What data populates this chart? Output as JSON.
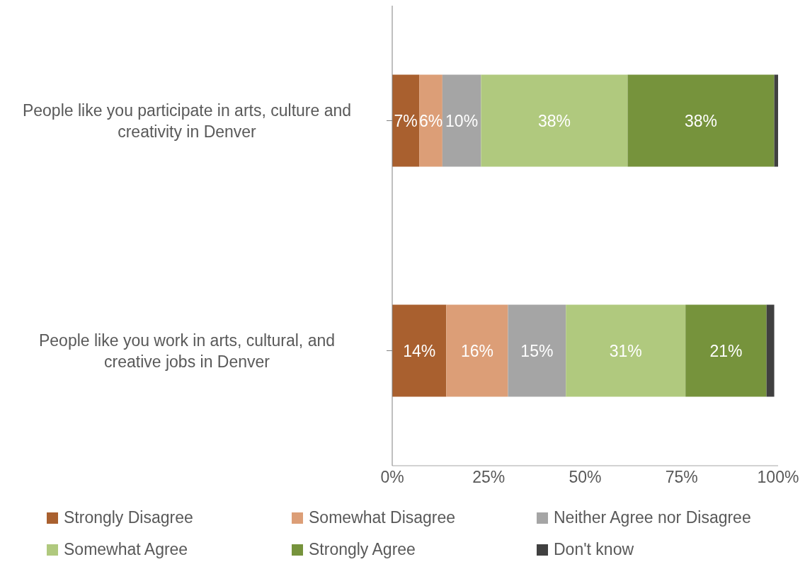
{
  "chart_data": {
    "type": "bar",
    "orientation": "horizontal",
    "stacked": true,
    "categories": [
      "People like you participate in arts, culture and creativity in Denver",
      "People like you work in arts, cultural, and creative jobs in Denver"
    ],
    "series": [
      {
        "name": "Strongly Disagree",
        "color": "#a9602f",
        "values": [
          7,
          14
        ],
        "value_labels": [
          "7%",
          "14%"
        ]
      },
      {
        "name": "Somewhat Disagree",
        "color": "#dc9e77",
        "values": [
          6,
          16
        ],
        "value_labels": [
          "6%",
          "16%"
        ]
      },
      {
        "name": "Neither Agree nor Disagree",
        "color": "#a5a5a5",
        "values": [
          10,
          15
        ],
        "value_labels": [
          "10%",
          "15%"
        ]
      },
      {
        "name": "Somewhat Agree",
        "color": "#b0c97e",
        "values": [
          38,
          31
        ],
        "value_labels": [
          "38%",
          "31%"
        ]
      },
      {
        "name": "Strongly Agree",
        "color": "#76933c",
        "values": [
          38,
          21
        ],
        "value_labels": [
          "38%",
          "21%"
        ]
      },
      {
        "name": "Don't know",
        "color": "#404040",
        "values": [
          1,
          2
        ],
        "value_labels": [
          null,
          null
        ]
      }
    ],
    "xlim": [
      0,
      100
    ],
    "xticks": [
      {
        "value": 0,
        "label": "0%"
      },
      {
        "value": 25,
        "label": "25%"
      },
      {
        "value": 50,
        "label": "50%"
      },
      {
        "value": 75,
        "label": "75%"
      },
      {
        "value": 100,
        "label": "100%"
      }
    ],
    "legend": "bottom",
    "grid": false
  }
}
